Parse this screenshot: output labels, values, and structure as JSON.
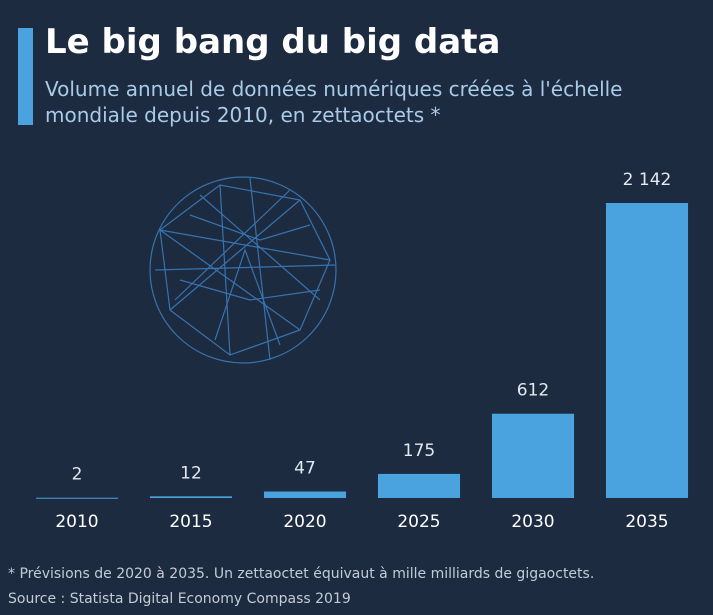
{
  "chart_data": {
    "type": "bar",
    "title": "Le big bang du big data",
    "subtitle": "Volume annuel de données numériques créées à l'échelle mondiale depuis 2010, en zettaoctets *",
    "categories": [
      "2010",
      "2015",
      "2020",
      "2025",
      "2030",
      "2035"
    ],
    "values": [
      2,
      12,
      47,
      175,
      612,
      2142
    ],
    "value_labels": [
      "2",
      "12",
      "47",
      "175",
      "612",
      "2 142"
    ],
    "color": "#4aa3df",
    "footnote": "* Prévisions de 2020 à 2035. Un zettaoctet équivaut à mille milliards de gigaoctets.",
    "source": "Source : Statista Digital Economy Compass 2019"
  }
}
